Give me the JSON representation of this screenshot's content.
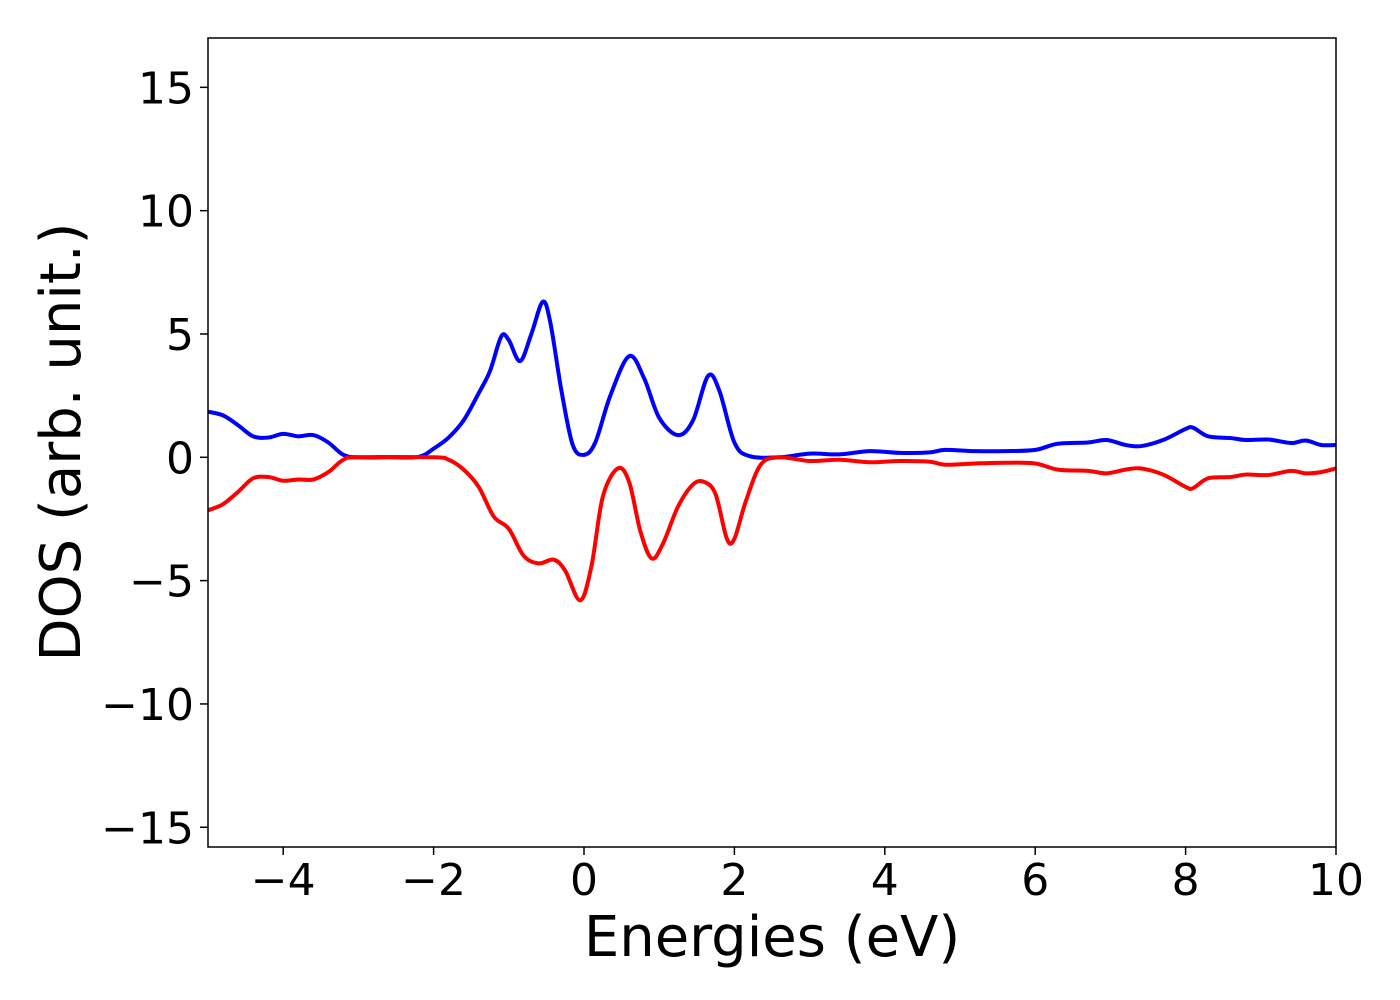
{
  "chart_data": {
    "type": "line",
    "xlabel": "Energies (eV)",
    "ylabel": "DOS (arb. unit.)",
    "xlim": [
      -5,
      10
    ],
    "ylim": [
      -15.8,
      17
    ],
    "grid": false,
    "xticks": [
      -4,
      -2,
      0,
      2,
      4,
      6,
      8,
      10
    ],
    "xtick_labels": [
      "−4",
      "−2",
      "0",
      "2",
      "4",
      "6",
      "8",
      "10"
    ],
    "yticks": [
      15,
      10,
      5,
      0,
      -5,
      -10,
      -15
    ],
    "ytick_labels": [
      "15",
      "10",
      "5",
      "0",
      "−5",
      "−10",
      "−15"
    ],
    "series": [
      {
        "color": "#0000ff",
        "points": [
          [
            -5,
            1.85
          ],
          [
            -4.8,
            1.7
          ],
          [
            -4.6,
            1.3
          ],
          [
            -4.4,
            0.85
          ],
          [
            -4.2,
            0.8
          ],
          [
            -4.0,
            0.95
          ],
          [
            -3.8,
            0.85
          ],
          [
            -3.6,
            0.9
          ],
          [
            -3.4,
            0.6
          ],
          [
            -3.2,
            0.1
          ],
          [
            -3.0,
            0.0
          ],
          [
            -2.6,
            0.0
          ],
          [
            -2.2,
            0.02
          ],
          [
            -2.0,
            0.35
          ],
          [
            -1.8,
            0.8
          ],
          [
            -1.6,
            1.5
          ],
          [
            -1.4,
            2.6
          ],
          [
            -1.25,
            3.5
          ],
          [
            -1.1,
            4.9
          ],
          [
            -1.0,
            4.75
          ],
          [
            -0.85,
            3.9
          ],
          [
            -0.7,
            5.0
          ],
          [
            -0.55,
            6.3
          ],
          [
            -0.45,
            5.5
          ],
          [
            -0.3,
            2.7
          ],
          [
            -0.15,
            0.5
          ],
          [
            0.0,
            0.1
          ],
          [
            0.15,
            0.6
          ],
          [
            0.35,
            2.5
          ],
          [
            0.6,
            4.1
          ],
          [
            0.8,
            3.2
          ],
          [
            1.0,
            1.6
          ],
          [
            1.25,
            0.9
          ],
          [
            1.45,
            1.5
          ],
          [
            1.65,
            3.3
          ],
          [
            1.8,
            2.7
          ],
          [
            2.0,
            0.6
          ],
          [
            2.2,
            0.05
          ],
          [
            2.6,
            0.0
          ],
          [
            3.0,
            0.15
          ],
          [
            3.4,
            0.12
          ],
          [
            3.8,
            0.25
          ],
          [
            4.2,
            0.18
          ],
          [
            4.6,
            0.2
          ],
          [
            4.8,
            0.3
          ],
          [
            5.2,
            0.25
          ],
          [
            5.6,
            0.25
          ],
          [
            6.0,
            0.3
          ],
          [
            6.3,
            0.55
          ],
          [
            6.7,
            0.6
          ],
          [
            6.95,
            0.7
          ],
          [
            7.2,
            0.5
          ],
          [
            7.4,
            0.45
          ],
          [
            7.7,
            0.7
          ],
          [
            8.0,
            1.15
          ],
          [
            8.1,
            1.2
          ],
          [
            8.3,
            0.85
          ],
          [
            8.6,
            0.78
          ],
          [
            8.8,
            0.7
          ],
          [
            9.1,
            0.72
          ],
          [
            9.4,
            0.58
          ],
          [
            9.6,
            0.68
          ],
          [
            9.8,
            0.5
          ],
          [
            10.0,
            0.5
          ]
        ]
      },
      {
        "color": "#ff0000",
        "points": [
          [
            -5,
            -2.15
          ],
          [
            -4.8,
            -1.9
          ],
          [
            -4.6,
            -1.4
          ],
          [
            -4.4,
            -0.85
          ],
          [
            -4.2,
            -0.8
          ],
          [
            -4.0,
            -0.95
          ],
          [
            -3.8,
            -0.9
          ],
          [
            -3.6,
            -0.9
          ],
          [
            -3.4,
            -0.6
          ],
          [
            -3.2,
            -0.1
          ],
          [
            -3.0,
            0.0
          ],
          [
            -2.0,
            0.0
          ],
          [
            -1.8,
            -0.1
          ],
          [
            -1.6,
            -0.5
          ],
          [
            -1.4,
            -1.2
          ],
          [
            -1.2,
            -2.4
          ],
          [
            -1.0,
            -2.9
          ],
          [
            -0.8,
            -4.0
          ],
          [
            -0.6,
            -4.3
          ],
          [
            -0.4,
            -4.15
          ],
          [
            -0.25,
            -4.6
          ],
          [
            -0.05,
            -5.8
          ],
          [
            0.1,
            -4.4
          ],
          [
            0.25,
            -1.6
          ],
          [
            0.45,
            -0.45
          ],
          [
            0.6,
            -1.0
          ],
          [
            0.75,
            -3.0
          ],
          [
            0.9,
            -4.1
          ],
          [
            1.05,
            -3.5
          ],
          [
            1.25,
            -2.0
          ],
          [
            1.45,
            -1.1
          ],
          [
            1.6,
            -1.0
          ],
          [
            1.75,
            -1.5
          ],
          [
            1.9,
            -3.3
          ],
          [
            2.0,
            -3.3
          ],
          [
            2.15,
            -1.8
          ],
          [
            2.35,
            -0.3
          ],
          [
            2.6,
            0.0
          ],
          [
            3.0,
            -0.15
          ],
          [
            3.4,
            -0.1
          ],
          [
            3.8,
            -0.2
          ],
          [
            4.2,
            -0.15
          ],
          [
            4.6,
            -0.18
          ],
          [
            4.8,
            -0.3
          ],
          [
            5.2,
            -0.25
          ],
          [
            5.6,
            -0.22
          ],
          [
            6.0,
            -0.25
          ],
          [
            6.3,
            -0.5
          ],
          [
            6.7,
            -0.55
          ],
          [
            6.95,
            -0.65
          ],
          [
            7.2,
            -0.5
          ],
          [
            7.4,
            -0.45
          ],
          [
            7.7,
            -0.7
          ],
          [
            8.0,
            -1.2
          ],
          [
            8.1,
            -1.25
          ],
          [
            8.3,
            -0.85
          ],
          [
            8.6,
            -0.8
          ],
          [
            8.8,
            -0.7
          ],
          [
            9.1,
            -0.72
          ],
          [
            9.4,
            -0.55
          ],
          [
            9.6,
            -0.65
          ],
          [
            9.8,
            -0.6
          ],
          [
            10.0,
            -0.45
          ]
        ]
      }
    ]
  }
}
